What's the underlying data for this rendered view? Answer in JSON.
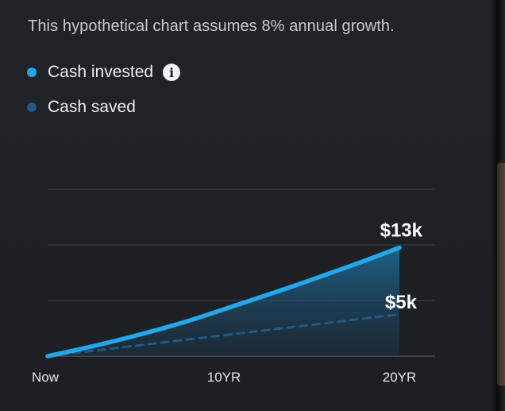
{
  "disclaimer": "This hypothetical chart assumes 8% annual growth.",
  "legend": {
    "invested_label": "Cash invested",
    "saved_label": "Cash saved"
  },
  "colors": {
    "invested": "#22a7e8",
    "saved": "#1f5a86",
    "gridline": "#3a3f45"
  },
  "chart_data": {
    "type": "line",
    "x_ticks": [
      "Now",
      "10YR",
      "20YR"
    ],
    "x_years": [
      0,
      2,
      4,
      6,
      8,
      10,
      12,
      14,
      16,
      18,
      20
    ],
    "series": [
      {
        "name": "Cash invested",
        "values": [
          0,
          0.9,
          1.9,
          3.0,
          4.2,
          5.6,
          7.0,
          8.4,
          9.9,
          11.4,
          13
        ],
        "end_label": "$13k"
      },
      {
        "name": "Cash saved",
        "values": [
          0,
          0.5,
          1.0,
          1.5,
          2.0,
          2.5,
          3.0,
          3.5,
          4.0,
          4.5,
          5
        ],
        "end_label": "$5k",
        "style": "dashed"
      }
    ],
    "ylim": [
      0,
      20
    ],
    "grid": true
  }
}
